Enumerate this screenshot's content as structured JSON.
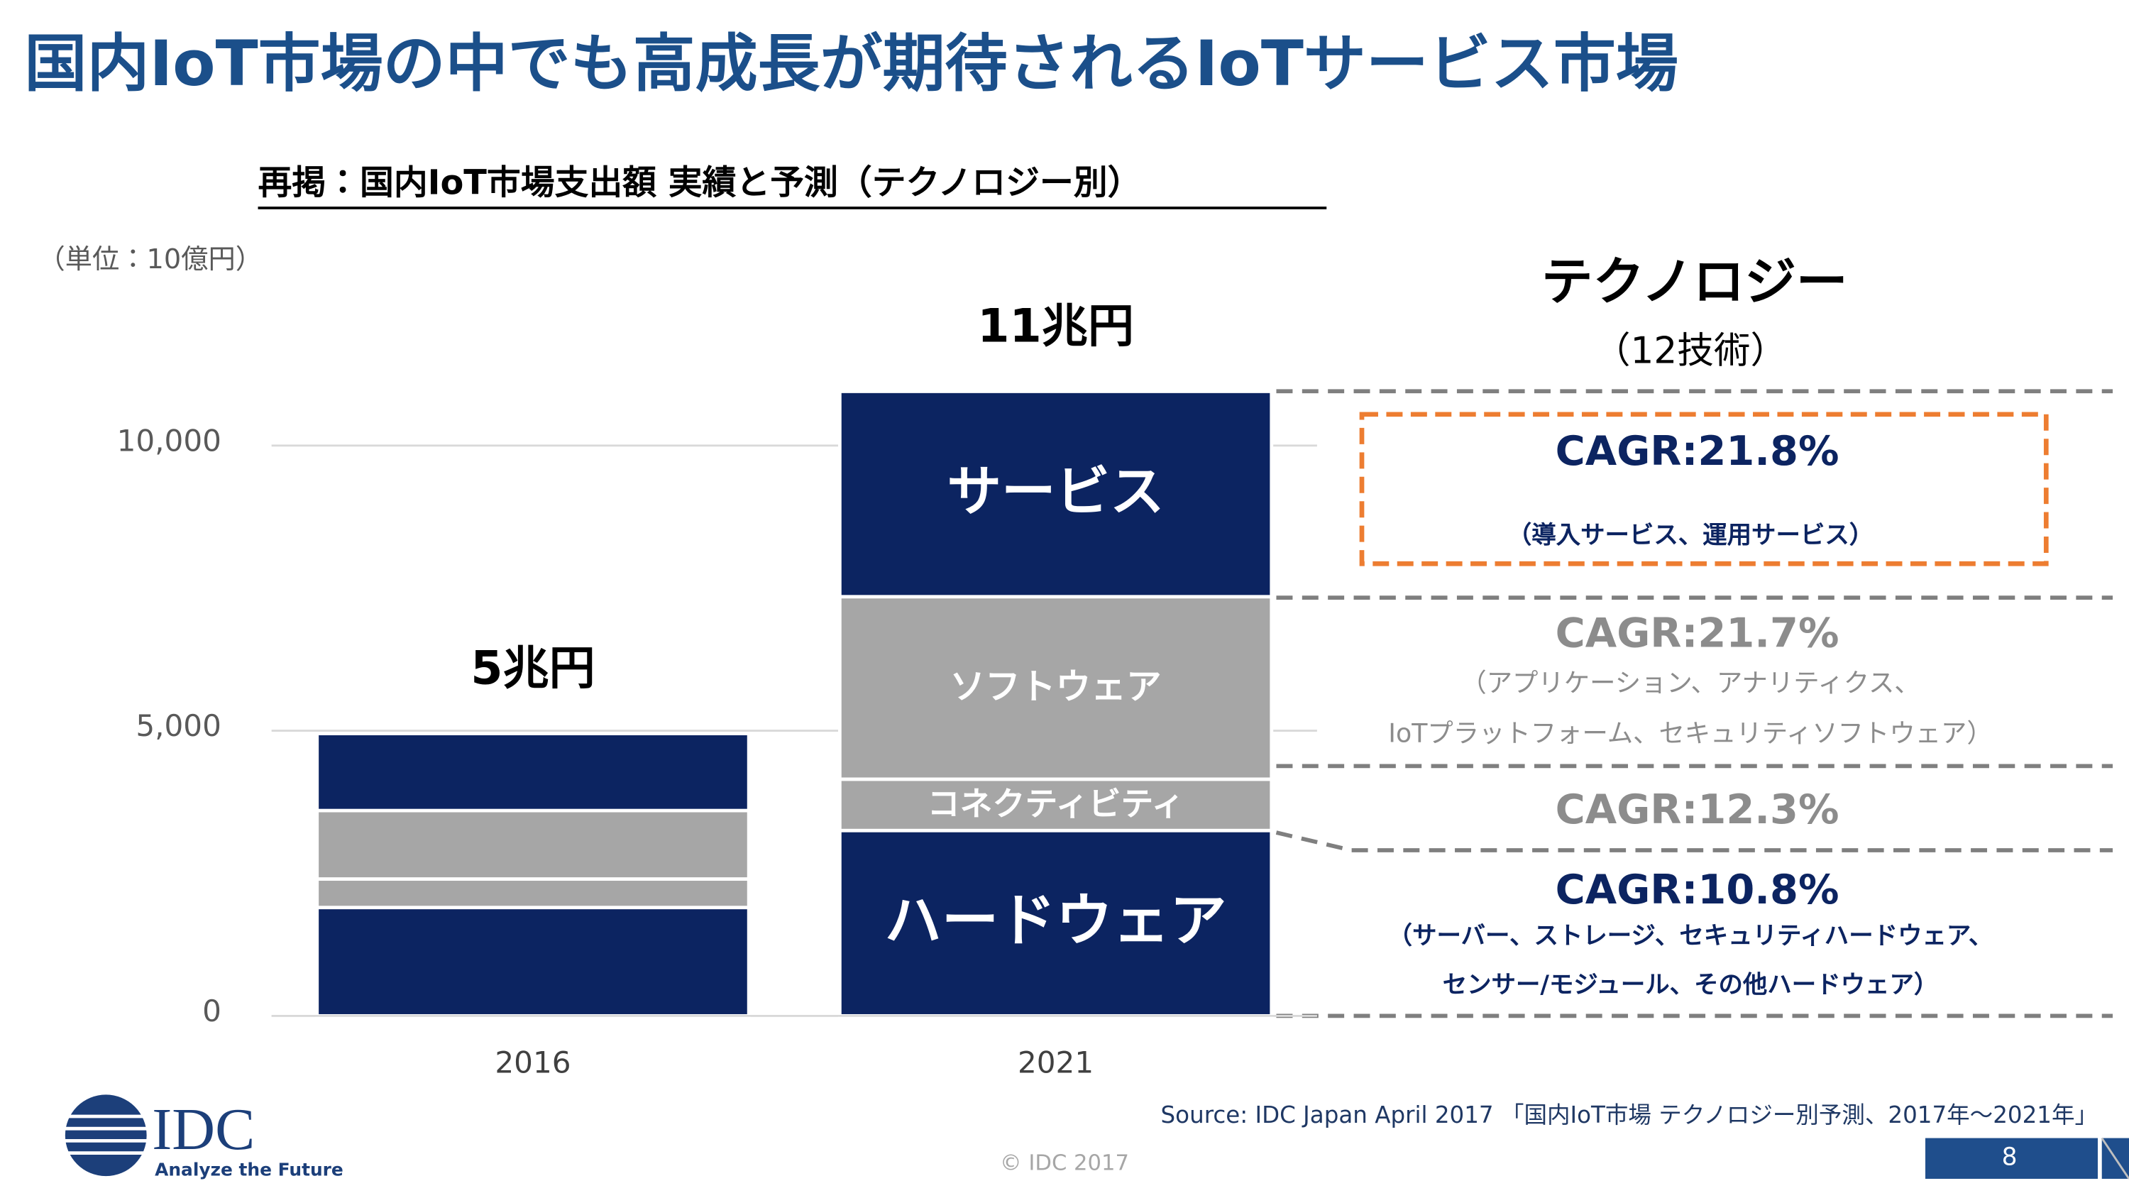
{
  "header": {
    "title": "国内IoT市場の中でも高成長が期待されるIoTサービス市場"
  },
  "chart_data": {
    "type": "stacked_bar",
    "title": "再掲：国内IoT市場支出額 実績と予測（テクノロジー別）",
    "y_unit_label": "（単位：10億円）",
    "categories": [
      "2016",
      "2021"
    ],
    "series": [
      {
        "name": "ハードウェア",
        "color": "#0c2461",
        "values": [
          1900,
          3250
        ]
      },
      {
        "name": "コネクティビティ",
        "color": "#a6a6a6",
        "values": [
          500,
          900
        ]
      },
      {
        "name": "ソフトウェア",
        "color": "#a6a6a6",
        "values": [
          1200,
          3200
        ]
      },
      {
        "name": "サービス",
        "color": "#0c2461",
        "values": [
          1350,
          3600
        ]
      }
    ],
    "total_labels": [
      "5兆円",
      "11兆円"
    ],
    "ylim": [
      0,
      12000
    ],
    "yticks": [
      0,
      {
        "value": 5000,
        "label": "5,000"
      },
      {
        "value": 10000,
        "label": "10,000"
      }
    ],
    "grid": true
  },
  "technology_panel": {
    "title": "テクノロジー",
    "subtitle": "（12技術）",
    "items": [
      {
        "cagr": "CAGR:21.8%",
        "color": "#0c2461",
        "detail": [
          "（導入サービス、運用サービス）"
        ]
      },
      {
        "cagr": "CAGR:21.7%",
        "color": "#8c8c8c",
        "detail": [
          "（アプリケーション、アナリティクス、",
          "IoTプラットフォーム、セキュリティソフトウェア）"
        ]
      },
      {
        "cagr": "CAGR:12.3%",
        "color": "#8c8c8c",
        "detail": []
      },
      {
        "cagr": "CAGR:10.8%",
        "color": "#0c2461",
        "detail": [
          "（サーバー、ストレージ、セキュリティハードウェア、",
          "センサー/モジュール、その他ハードウェア）"
        ]
      }
    ]
  },
  "footer": {
    "source": "Source: IDC Japan April 2017 「国内IoT市場 テクノロジー別予測、2017年～2021年」",
    "logo": "IDC",
    "tagline": "Analyze the Future",
    "copyright": "© IDC 2017",
    "page": "8"
  }
}
